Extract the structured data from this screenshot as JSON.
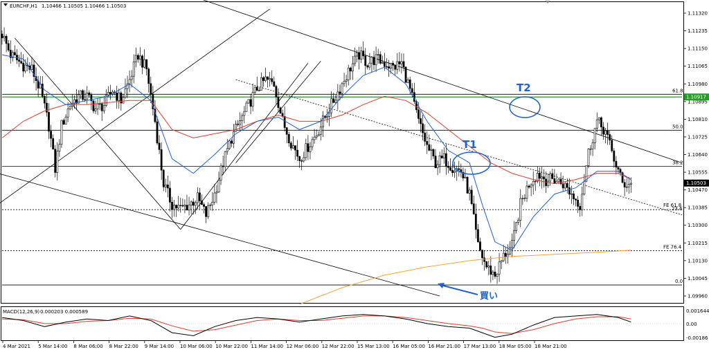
{
  "header": {
    "symbol": "EURCHF,H1",
    "ohlc": "1.10466 1.10505 1.10466 1.10503"
  },
  "indicator": {
    "name": "MACD(12,26,9)",
    "values": "0.000203 0.000589",
    "axis_labels": [
      "0.001644",
      "0.00",
      "-0.00186"
    ]
  },
  "price_axis": {
    "ticks": [
      1.1132,
      1.11235,
      1.1115,
      1.11065,
      1.1098,
      1.10895,
      1.1081,
      1.10725,
      1.1064,
      1.10555,
      1.1047,
      1.10385,
      1.103,
      1.10215,
      1.1013,
      1.10045,
      1.0996
    ],
    "tick_labels": [
      "1.11320",
      "1.11235",
      "1.11150",
      "1.11065",
      "1.10980",
      "1.10895",
      "1.10810",
      "1.10725",
      "1.10640",
      "1.10555",
      "1.10470",
      "1.10385",
      "1.10300",
      "1.10215",
      "1.10130",
      "1.10045",
      "1.09960"
    ],
    "range": [
      1.0993,
      1.1137
    ],
    "current_price_label": "1.10503",
    "current_price": 1.10503,
    "hline_price_label": "1.10917",
    "hline_price": 1.10917
  },
  "time_axis": {
    "labels": [
      "4 Mar 2021",
      "5 Mar 14:00",
      "8 Mar 06:00",
      "8 Mar 22:00",
      "9 Mar 14:00",
      "10 Mar 06:00",
      "10 Mar 22:00",
      "11 Mar 14:00",
      "12 Mar 06:00",
      "12 Mar 22:00",
      "15 Mar 13:00",
      "16 Mar 05:00",
      "16 Mar 21:00",
      "17 Mar 13:00",
      "18 Mar 05:00",
      "18 Mar 21:00"
    ]
  },
  "fibonacci": {
    "levels": [
      {
        "label": "61.8",
        "price": 1.1093
      },
      {
        "label": "50.0",
        "price": 1.10757
      },
      {
        "label": "38.2",
        "price": 1.10583
      },
      {
        "label": "0.0",
        "price": 1.10013
      }
    ],
    "expansion": [
      {
        "label": "FE 61.8",
        "price": 1.10375
      },
      {
        "label": "FE 76.4",
        "price": 1.10178
      }
    ],
    "extra_label": "23.6"
  },
  "annotations": {
    "t1": "T1",
    "t2": "T2",
    "buy": "買い"
  },
  "colors": {
    "candles": "#000000",
    "ma_fast": "#1f5fd8",
    "ma_mid": "#e03c28",
    "ma_slow": "#f5a33a",
    "macd": "#000000",
    "signal": "#e03c28",
    "hline": "#2a9a2a",
    "annotation": "#1e63c8"
  },
  "chart_data": {
    "type": "candlestick",
    "title": "EURCHF,H1",
    "ylim": [
      1.0993,
      1.1137
    ],
    "close_path": [
      [
        0,
        1.1122
      ],
      [
        4,
        1.1112
      ],
      [
        10,
        1.1107
      ],
      [
        14,
        1.1105
      ],
      [
        18,
        1.1095
      ],
      [
        22,
        1.1078
      ],
      [
        25,
        1.1057
      ],
      [
        28,
        1.1078
      ],
      [
        32,
        1.1088
      ],
      [
        36,
        1.1092
      ],
      [
        40,
        1.1092
      ],
      [
        44,
        1.1086
      ],
      [
        48,
        1.1088
      ],
      [
        52,
        1.1095
      ],
      [
        56,
        1.109
      ],
      [
        60,
        1.11
      ],
      [
        64,
        1.1112
      ],
      [
        68,
        1.1105
      ],
      [
        72,
        1.108
      ],
      [
        76,
        1.105
      ],
      [
        80,
        1.104
      ],
      [
        84,
        1.1038
      ],
      [
        88,
        1.104
      ],
      [
        92,
        1.1043
      ],
      [
        96,
        1.1035
      ],
      [
        100,
        1.1045
      ],
      [
        104,
        1.106
      ],
      [
        108,
        1.1072
      ],
      [
        112,
        1.108
      ],
      [
        116,
        1.1088
      ],
      [
        120,
        1.1096
      ],
      [
        124,
        1.11
      ],
      [
        128,
        1.1098
      ],
      [
        132,
        1.108
      ],
      [
        136,
        1.107
      ],
      [
        140,
        1.1062
      ],
      [
        144,
        1.1068
      ],
      [
        148,
        1.1074
      ],
      [
        152,
        1.1082
      ],
      [
        156,
        1.109
      ],
      [
        160,
        1.1098
      ],
      [
        164,
        1.1106
      ],
      [
        168,
        1.1112
      ],
      [
        172,
        1.1108
      ],
      [
        176,
        1.111
      ],
      [
        180,
        1.1108
      ],
      [
        184,
        1.1106
      ],
      [
        188,
        1.1108
      ],
      [
        192,
        1.1095
      ],
      [
        196,
        1.108
      ],
      [
        200,
        1.1068
      ],
      [
        204,
        1.106
      ],
      [
        208,
        1.1062
      ],
      [
        212,
        1.1058
      ],
      [
        216,
        1.1056
      ],
      [
        220,
        1.1045
      ],
      [
        224,
        1.102
      ],
      [
        228,
        1.101
      ],
      [
        232,
        1.1006
      ],
      [
        236,
        1.1015
      ],
      [
        240,
        1.102
      ],
      [
        244,
        1.104
      ],
      [
        248,
        1.105
      ],
      [
        252,
        1.1055
      ],
      [
        256,
        1.1052
      ],
      [
        260,
        1.1052
      ],
      [
        264,
        1.105
      ],
      [
        268,
        1.1045
      ],
      [
        272,
        1.104
      ],
      [
        276,
        1.1065
      ],
      [
        280,
        1.108
      ],
      [
        284,
        1.1075
      ],
      [
        288,
        1.1062
      ],
      [
        292,
        1.105
      ],
      [
        296,
        1.105
      ]
    ],
    "ma_fast_path": [
      [
        0,
        1.1112
      ],
      [
        10,
        1.111
      ],
      [
        20,
        1.1095
      ],
      [
        30,
        1.1088
      ],
      [
        40,
        1.109
      ],
      [
        50,
        1.1092
      ],
      [
        60,
        1.1098
      ],
      [
        70,
        1.109
      ],
      [
        80,
        1.1062
      ],
      [
        90,
        1.1055
      ],
      [
        100,
        1.1064
      ],
      [
        110,
        1.1074
      ],
      [
        120,
        1.108
      ],
      [
        130,
        1.1082
      ],
      [
        140,
        1.1076
      ],
      [
        150,
        1.108
      ],
      [
        160,
        1.1092
      ],
      [
        170,
        1.1102
      ],
      [
        180,
        1.1106
      ],
      [
        190,
        1.1098
      ],
      [
        200,
        1.108
      ],
      [
        210,
        1.1066
      ],
      [
        220,
        1.106
      ],
      [
        226,
        1.104
      ],
      [
        232,
        1.1022
      ],
      [
        240,
        1.1018
      ],
      [
        250,
        1.1034
      ],
      [
        260,
        1.1045
      ],
      [
        270,
        1.1048
      ],
      [
        280,
        1.1056
      ],
      [
        290,
        1.1056
      ],
      [
        296,
        1.1052
      ]
    ],
    "ma_mid_path": [
      [
        0,
        1.1072
      ],
      [
        10,
        1.108
      ],
      [
        20,
        1.1085
      ],
      [
        30,
        1.1088
      ],
      [
        40,
        1.1088
      ],
      [
        50,
        1.1089
      ],
      [
        60,
        1.109
      ],
      [
        70,
        1.109
      ],
      [
        80,
        1.1076
      ],
      [
        90,
        1.1072
      ],
      [
        100,
        1.1074
      ],
      [
        110,
        1.1076
      ],
      [
        120,
        1.108
      ],
      [
        130,
        1.1083
      ],
      [
        140,
        1.108
      ],
      [
        150,
        1.108
      ],
      [
        160,
        1.1083
      ],
      [
        170,
        1.1088
      ],
      [
        180,
        1.1092
      ],
      [
        190,
        1.109
      ],
      [
        200,
        1.1084
      ],
      [
        210,
        1.1076
      ],
      [
        220,
        1.1068
      ],
      [
        230,
        1.106
      ],
      [
        240,
        1.1055
      ],
      [
        250,
        1.1052
      ],
      [
        260,
        1.105
      ],
      [
        270,
        1.1052
      ],
      [
        280,
        1.1055
      ],
      [
        290,
        1.1055
      ],
      [
        296,
        1.1052
      ]
    ],
    "ma_slow_path": [
      [
        140,
        1.0992
      ],
      [
        160,
        1.1
      ],
      [
        180,
        1.1006
      ],
      [
        200,
        1.101
      ],
      [
        220,
        1.1013
      ],
      [
        240,
        1.1015
      ],
      [
        260,
        1.1016
      ],
      [
        280,
        1.1017
      ],
      [
        296,
        1.1018
      ]
    ],
    "macd_path": [
      [
        0,
        0.0008
      ],
      [
        10,
        0.0004
      ],
      [
        20,
        -0.0004
      ],
      [
        30,
        0.0002
      ],
      [
        40,
        0.0006
      ],
      [
        50,
        0.0004
      ],
      [
        60,
        0.001
      ],
      [
        70,
        0.0004
      ],
      [
        80,
        -0.0012
      ],
      [
        90,
        -0.0016
      ],
      [
        100,
        -0.0004
      ],
      [
        110,
        0.0004
      ],
      [
        120,
        0.0008
      ],
      [
        130,
        0.0006
      ],
      [
        140,
        0.0002
      ],
      [
        150,
        0.0006
      ],
      [
        160,
        0.001
      ],
      [
        170,
        0.0012
      ],
      [
        180,
        0.001
      ],
      [
        190,
        0.0006
      ],
      [
        200,
        0.0
      ],
      [
        210,
        -0.0004
      ],
      [
        220,
        -0.0006
      ],
      [
        226,
        -0.0012
      ],
      [
        232,
        -0.0018
      ],
      [
        240,
        -0.0014
      ],
      [
        250,
        -0.0002
      ],
      [
        260,
        0.0008
      ],
      [
        270,
        0.001
      ],
      [
        280,
        0.0012
      ],
      [
        290,
        0.0008
      ],
      [
        296,
        0.0002
      ]
    ],
    "signal_path": [
      [
        0,
        0.0006
      ],
      [
        10,
        0.0005
      ],
      [
        20,
        0.0
      ],
      [
        30,
        0.0
      ],
      [
        40,
        0.0003
      ],
      [
        50,
        0.0004
      ],
      [
        60,
        0.0007
      ],
      [
        70,
        0.0006
      ],
      [
        80,
        -0.0003
      ],
      [
        90,
        -0.001
      ],
      [
        100,
        -0.0008
      ],
      [
        110,
        -0.0002
      ],
      [
        120,
        0.0004
      ],
      [
        130,
        0.0006
      ],
      [
        140,
        0.0004
      ],
      [
        150,
        0.0004
      ],
      [
        160,
        0.0007
      ],
      [
        170,
        0.001
      ],
      [
        180,
        0.001
      ],
      [
        190,
        0.0008
      ],
      [
        200,
        0.0004
      ],
      [
        210,
        0.0
      ],
      [
        220,
        -0.0003
      ],
      [
        226,
        -0.0006
      ],
      [
        232,
        -0.0011
      ],
      [
        240,
        -0.0013
      ],
      [
        250,
        -0.0008
      ],
      [
        260,
        0.0
      ],
      [
        270,
        0.0006
      ],
      [
        280,
        0.0009
      ],
      [
        290,
        0.0009
      ],
      [
        296,
        0.0006
      ]
    ],
    "macd_range": [
      -0.0021,
      0.0019
    ],
    "trend_lines": [
      {
        "kind": "solid",
        "from": [
          -2,
          1.1172
        ],
        "to": [
          320,
          1.106
        ]
      },
      {
        "kind": "dotted",
        "from": [
          110,
          1.11
        ],
        "to": [
          320,
          1.1035
        ]
      },
      {
        "kind": "solid",
        "from": [
          -2,
          1.1055
        ],
        "to": [
          206,
          1.0996
        ]
      },
      {
        "kind": "solid",
        "from": [
          -2,
          1.104
        ],
        "to": [
          126,
          1.1134
        ]
      },
      {
        "kind": "solid",
        "from": [
          84,
          1.1028
        ],
        "to": [
          144,
          1.1108
        ]
      },
      {
        "kind": "solid",
        "from": [
          110,
          1.106
        ],
        "to": [
          150,
          1.1109
        ]
      },
      {
        "kind": "solid",
        "from": [
          6,
          1.112
        ],
        "to": [
          84,
          1.1028
        ]
      }
    ]
  }
}
